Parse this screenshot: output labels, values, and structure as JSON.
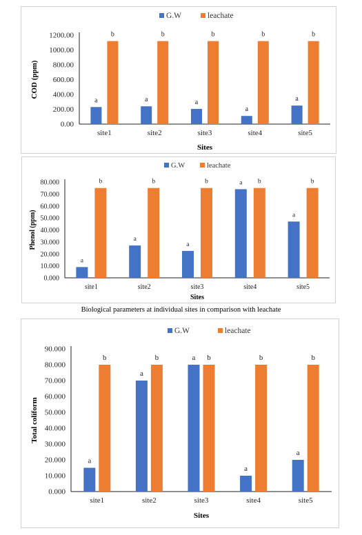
{
  "caption": "Biological parameters at individual sites in comparison with leachate",
  "colors": {
    "gw": "#4472C4",
    "leachate": "#ED7D31",
    "grid": "#d9d9d9",
    "axis": "#1f1f1f"
  },
  "chart_data": [
    {
      "type": "bar",
      "categories": [
        "site1",
        "site2",
        "site3",
        "site4",
        "site5"
      ],
      "series": [
        {
          "name": "G.W",
          "values": [
            230,
            240,
            205,
            110,
            250
          ],
          "labels": [
            "a",
            "a",
            "a",
            "a",
            "a"
          ]
        },
        {
          "name": "leachate",
          "values": [
            1120,
            1120,
            1120,
            1120,
            1120
          ],
          "labels": [
            "b",
            "b",
            "b",
            "b",
            "b"
          ]
        }
      ],
      "xlabel": "Sites",
      "ylabel": "COD (ppm)",
      "ylim": [
        0,
        1200
      ],
      "yticks": [
        "0.00",
        "200.00",
        "400.00",
        "600.00",
        "800.00",
        "1000.00",
        "1200.00"
      ],
      "legend": "top-center",
      "grid": false
    },
    {
      "type": "bar",
      "categories": [
        "site1",
        "site2",
        "site3",
        "site4",
        "site5"
      ],
      "series": [
        {
          "name": "G.W",
          "values": [
            9,
            27,
            22.5,
            74,
            47
          ],
          "labels": [
            "a",
            "a",
            "a",
            "a",
            "a"
          ]
        },
        {
          "name": "leachate",
          "values": [
            75,
            75,
            75,
            75,
            75
          ],
          "labels": [
            "b",
            "b",
            "b",
            "b",
            "b"
          ]
        }
      ],
      "xlabel": "Sites",
      "ylabel": "Phenol (ppm)",
      "ylim": [
        0,
        80
      ],
      "yticks": [
        "0.000",
        "10.000",
        "20.000",
        "30.000",
        "40.000",
        "50.000",
        "60.000",
        "70.000",
        "80.000"
      ],
      "legend": "top-center",
      "grid": false
    },
    {
      "type": "bar",
      "categories": [
        "site1",
        "site2",
        "site3",
        "site4",
        "site5"
      ],
      "series": [
        {
          "name": "G.W",
          "values": [
            15,
            70,
            80,
            10,
            20
          ],
          "labels": [
            "a",
            "a",
            "a",
            "a",
            "a"
          ]
        },
        {
          "name": "leachate",
          "values": [
            80,
            80,
            80,
            80,
            80
          ],
          "labels": [
            "b",
            "b",
            "b",
            "b",
            "b"
          ]
        }
      ],
      "xlabel": "Sites",
      "ylabel": "Total coliform",
      "ylim": [
        0,
        90
      ],
      "yticks": [
        "0.000",
        "10.000",
        "20.000",
        "30.000",
        "40.000",
        "50.000",
        "60.000",
        "70.000",
        "80.000",
        "90.000"
      ],
      "legend": "top-center",
      "grid": false
    }
  ]
}
